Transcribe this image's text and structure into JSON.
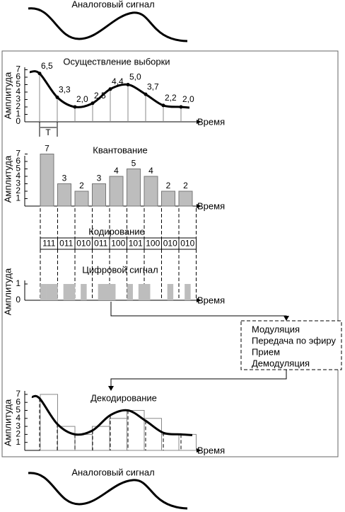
{
  "top_label": "Аналоговый сигнал",
  "sampling": {
    "title": "Осуществление выборки",
    "y_label": "Амплитуда",
    "x_label": "Время",
    "period_label": "Т",
    "yticks": [
      0,
      1,
      2,
      3,
      4,
      5,
      6,
      7
    ],
    "samples": [
      {
        "value": 6.5,
        "label": "6,5"
      },
      {
        "value": 3.3,
        "label": "3,3"
      },
      {
        "value": 2.0,
        "label": "2,0"
      },
      {
        "value": 2.5,
        "label": "2,5"
      },
      {
        "value": 4.4,
        "label": "4,4"
      },
      {
        "value": 5.0,
        "label": "5,0"
      },
      {
        "value": 3.7,
        "label": "3,7"
      },
      {
        "value": 2.2,
        "label": "2,2"
      },
      {
        "value": 2.0,
        "label": "2,0"
      }
    ]
  },
  "quantization": {
    "title": "Квантование",
    "y_label": "Амплитуда",
    "x_label": "Время",
    "yticks": [
      1,
      2,
      3,
      4,
      5,
      6,
      7
    ],
    "values": [
      7,
      3,
      2,
      3,
      4,
      5,
      4,
      2,
      2
    ]
  },
  "coding": {
    "title": "Кодирование",
    "codes": [
      "111",
      "011",
      "010",
      "011",
      "100",
      "101",
      "100",
      "010",
      "010"
    ]
  },
  "digital": {
    "title": "Цифровой сигнал",
    "y_label": "Амплитуда",
    "x_label": "Время",
    "yticks": [
      0,
      1
    ]
  },
  "process": {
    "steps": [
      "Модуляция",
      "Передача по эфиру",
      "Прием",
      "Демодуляция"
    ]
  },
  "decoding": {
    "title": "Декодирование",
    "y_label": "Амплитуда",
    "x_label": "Время",
    "yticks": [
      1,
      2,
      3,
      4,
      5,
      6,
      7
    ]
  },
  "bottom_label": "Аналоговый сигнал"
}
